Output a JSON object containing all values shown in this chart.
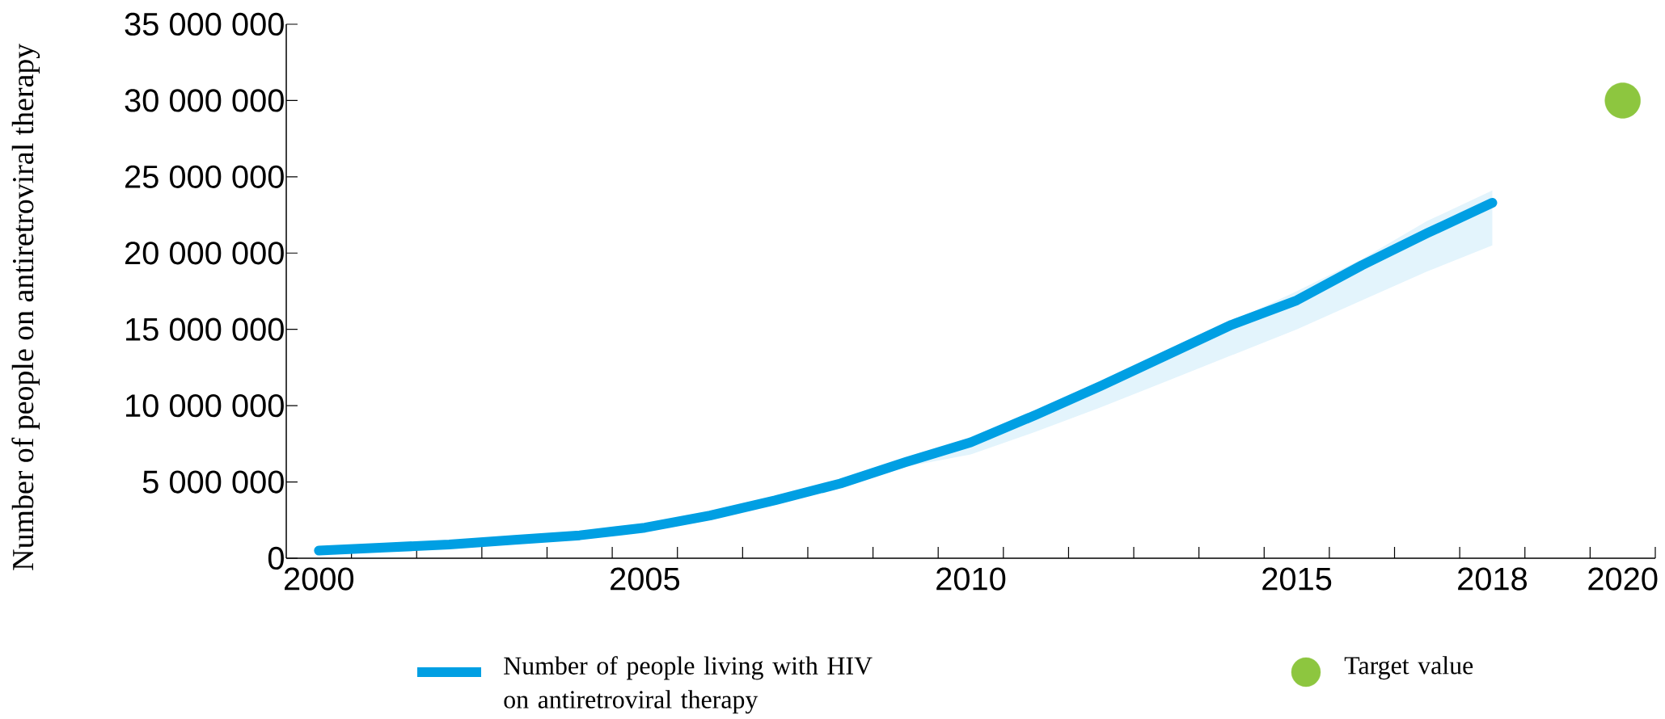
{
  "chart_data": {
    "type": "line",
    "ylabel": "Number of people on antiretroviral therapy",
    "xlim": [
      1999.5,
      2020.5
    ],
    "xticks": [
      {
        "value": 2000,
        "label": "2000"
      },
      {
        "value": 2005,
        "label": "2005"
      },
      {
        "value": 2010,
        "label": "2010"
      },
      {
        "value": 2015,
        "label": "2015"
      },
      {
        "value": 2018,
        "label": "2018"
      },
      {
        "value": 2020,
        "label": "2020"
      },
      {
        "value": 2000.5,
        "label": null
      },
      {
        "value": 2001.5,
        "label": null
      },
      {
        "value": 2002.5,
        "label": null
      },
      {
        "value": 2003.5,
        "label": null
      },
      {
        "value": 2004.5,
        "label": null
      },
      {
        "value": 2005.5,
        "label": null
      },
      {
        "value": 2006.5,
        "label": null
      },
      {
        "value": 2007.5,
        "label": null
      },
      {
        "value": 2008.5,
        "label": null
      },
      {
        "value": 2009.5,
        "label": null
      },
      {
        "value": 2010.5,
        "label": null
      },
      {
        "value": 2011.5,
        "label": null
      },
      {
        "value": 2012.5,
        "label": null
      },
      {
        "value": 2013.5,
        "label": null
      },
      {
        "value": 2014.5,
        "label": null
      },
      {
        "value": 2015.5,
        "label": null
      },
      {
        "value": 2016.5,
        "label": null
      },
      {
        "value": 2017.5,
        "label": null
      },
      {
        "value": 2018.5,
        "label": null
      },
      {
        "value": 2019.5,
        "label": null
      },
      {
        "value": 2020.5,
        "label": null
      }
    ],
    "ylim": [
      0,
      35000000
    ],
    "yticks": [
      0,
      {
        "value": 5000000,
        "label": "5 000 000"
      },
      {
        "value": 10000000,
        "label": "10 000 000"
      },
      {
        "value": 15000000,
        "label": "15 000 000"
      },
      {
        "value": 20000000,
        "label": "20 000 000"
      },
      {
        "value": 25000000,
        "label": "25 000 000"
      },
      {
        "value": 30000000,
        "label": "30 000 000"
      },
      {
        "value": 35000000,
        "label": "35 000 000"
      }
    ],
    "legend": "bottom",
    "series": [
      {
        "name": "Number of people living with HIV on antiretroviral therapy",
        "color": "#009fe3",
        "x": [
          2000,
          2001,
          2002,
          2003,
          2004,
          2005,
          2006,
          2007,
          2008,
          2009,
          2010,
          2011,
          2012,
          2013,
          2014,
          2015,
          2016,
          2017,
          2018
        ],
        "values": [
          500000,
          700000,
          900000,
          1200000,
          1500000,
          2000000,
          2800000,
          3800000,
          4900000,
          6300000,
          7600000,
          9400000,
          11300000,
          13300000,
          15300000,
          16900000,
          19200000,
          21300000,
          23300000
        ],
        "lower": [
          500000,
          700000,
          900000,
          1200000,
          1500000,
          2000000,
          2800000,
          3800000,
          4900000,
          6000000,
          6800000,
          8300000,
          9900000,
          11600000,
          13300000,
          15000000,
          16900000,
          18800000,
          20500000
        ],
        "upper": [
          500000,
          700000,
          900000,
          1200000,
          1500000,
          2000000,
          2800000,
          3800000,
          4900000,
          6300000,
          7600000,
          9500000,
          11500000,
          13500000,
          15500000,
          17500000,
          19600000,
          22100000,
          24100000
        ]
      },
      {
        "name": "Target value",
        "type": "scatter",
        "color": "#8dc63f",
        "x": [
          2020
        ],
        "values": [
          30000000
        ],
        "marker": "circle"
      }
    ]
  }
}
